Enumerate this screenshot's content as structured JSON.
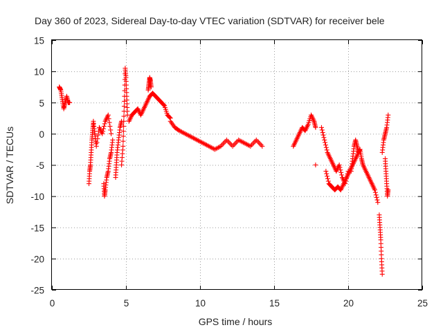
{
  "chart_data": {
    "type": "scatter",
    "title": "Day 360 of 2023, Sidereal Day-to-day VTEC variation (SDTVAR) for receiver bele",
    "xlabel": "GPS time / hours",
    "ylabel": "SDTVAR / TECUs",
    "xlim": [
      0,
      25
    ],
    "ylim": [
      -25,
      15
    ],
    "xticks": [
      "0",
      "5",
      "10",
      "15",
      "20",
      "25"
    ],
    "yticks": [
      "15",
      "10",
      "5",
      "0",
      "-5",
      "-10",
      "-15",
      "-20",
      "-25"
    ],
    "grid": true,
    "marker": "+",
    "color": "#ff0000",
    "series": [
      {
        "name": "bele",
        "segments": [
          {
            "t": [
              0.5,
              0.6,
              0.7,
              0.8,
              0.9,
              1.0,
              1.1,
              1.2
            ],
            "v": [
              7.5,
              7.0,
              5.5,
              4.0,
              5.0,
              6.0,
              5.0,
              5.0
            ]
          },
          {
            "t": [
              2.5,
              2.55,
              2.6,
              2.65,
              2.7,
              2.75,
              2.8,
              2.9,
              3.0,
              3.2,
              3.4,
              3.6,
              3.8,
              4.0
            ],
            "v": [
              -8.0,
              -6.0,
              -5.0,
              -3.0,
              -1.0,
              0.5,
              2.0,
              0.0,
              -2.0,
              1.0,
              0.0,
              2.0,
              3.0,
              0.0
            ]
          },
          {
            "t": [
              3.5,
              3.55,
              3.6,
              3.7,
              3.8,
              3.9,
              4.0,
              4.1
            ],
            "v": [
              -8.0,
              -10.0,
              -9.0,
              -7.0,
              -6.0,
              -4.0,
              -3.0,
              -1.0
            ]
          },
          {
            "t": [
              4.3,
              4.35,
              4.4,
              4.5,
              4.6,
              4.7
            ],
            "v": [
              -7.0,
              -5.0,
              -3.0,
              -1.0,
              1.0,
              2.0
            ]
          },
          {
            "t": [
              4.7,
              4.8,
              4.85,
              4.9,
              4.95,
              5.0,
              5.05,
              5.1
            ],
            "v": [
              -5.0,
              -2.0,
              2.0,
              6.0,
              10.5,
              9.0,
              6.0,
              3.0
            ]
          },
          {
            "t": [
              5.2,
              5.4,
              5.6,
              5.8,
              6.0,
              6.2,
              6.4,
              6.6,
              6.8,
              7.0,
              7.2,
              7.4,
              7.6,
              7.8,
              8.0
            ],
            "v": [
              2.0,
              3.0,
              3.5,
              4.0,
              3.0,
              4.0,
              5.0,
              6.0,
              6.5,
              6.0,
              5.5,
              5.0,
              4.5,
              3.0,
              2.5
            ]
          },
          {
            "t": [
              6.5,
              6.55,
              6.6,
              6.65,
              6.7
            ],
            "v": [
              7.0,
              8.0,
              9.0,
              8.5,
              7.5
            ]
          },
          {
            "t": [
              8.0,
              8.3,
              8.6,
              9.0,
              9.4,
              9.8,
              10.2,
              10.6,
              11.0,
              11.4,
              11.8,
              12.2,
              12.6,
              13.0,
              13.4,
              13.8,
              14.2
            ],
            "v": [
              2.0,
              1.0,
              0.5,
              0.0,
              -0.5,
              -1.0,
              -1.5,
              -2.0,
              -2.5,
              -2.0,
              -1.0,
              -2.0,
              -1.0,
              -1.5,
              -2.0,
              -1.0,
              -2.0
            ]
          },
          {
            "t": [
              16.3,
              16.5,
              16.7,
              16.9,
              17.1,
              17.3,
              17.5,
              17.7,
              17.8
            ],
            "v": [
              -2.0,
              -1.0,
              0.0,
              1.0,
              0.5,
              1.5,
              3.0,
              2.0,
              1.0
            ]
          },
          {
            "t": [
              17.8
            ],
            "v": [
              -5.0
            ]
          },
          {
            "t": [
              18.2,
              18.4,
              18.6,
              18.8,
              19.0,
              19.2,
              19.4,
              19.6,
              19.8,
              20.0
            ],
            "v": [
              1.0,
              -1.0,
              -3.0,
              -4.0,
              -5.0,
              -6.0,
              -5.0,
              -7.0,
              -8.0,
              -6.0
            ]
          },
          {
            "t": [
              18.5,
              18.7,
              18.9,
              19.1,
              19.3,
              19.5,
              19.7,
              19.9,
              20.1,
              20.3,
              20.5,
              20.7
            ],
            "v": [
              -6.0,
              -8.0,
              -8.5,
              -9.0,
              -8.5,
              -9.0,
              -8.0,
              -7.0,
              -6.0,
              -5.0,
              -4.0,
              -3.0
            ]
          },
          {
            "t": [
              20.2,
              20.3,
              20.4,
              20.5,
              20.6,
              20.7,
              20.8,
              20.9,
              21.0,
              21.2,
              21.4,
              21.6,
              21.8,
              22.0
            ],
            "v": [
              -6.0,
              -4.0,
              -2.0,
              -1.0,
              -2.0,
              -3.0,
              -2.5,
              -4.0,
              -5.0,
              -6.0,
              -7.0,
              -8.0,
              -9.0,
              -11.0
            ]
          },
          {
            "t": [
              22.1,
              22.15,
              22.2,
              22.25,
              22.3
            ],
            "v": [
              -13.0,
              -15.0,
              -17.0,
              -20.0,
              -22.5
            ]
          },
          {
            "t": [
              22.3,
              22.4,
              22.5,
              22.6,
              22.7
            ],
            "v": [
              -3.0,
              -1.0,
              0.0,
              1.0,
              3.0
            ]
          },
          {
            "t": [
              22.5,
              22.55,
              22.6,
              22.65,
              22.7
            ],
            "v": [
              -4.0,
              -6.0,
              -8.0,
              -10.0,
              -9.0
            ]
          }
        ]
      }
    ]
  }
}
